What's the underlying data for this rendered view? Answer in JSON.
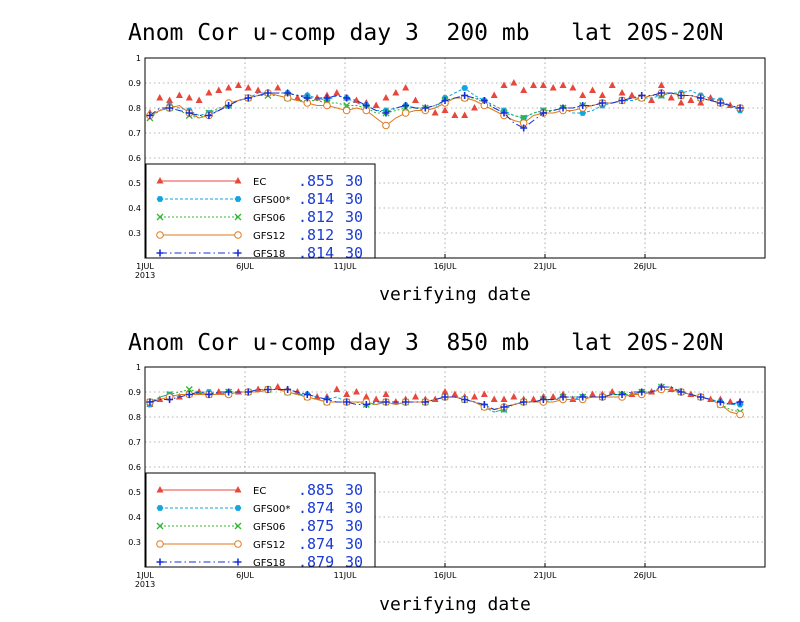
{
  "chart_data": [
    {
      "type": "line",
      "title": "Anom Cor u-comp day 3  200 mb   lat 20S-20N",
      "xlabel": "verifying date",
      "ylabel": "",
      "ylim": [
        0.2,
        1.0
      ],
      "yticks": [
        "1",
        "0.9",
        "0.8",
        "0.7",
        "0.6",
        "0.5",
        "0.4",
        "0.3"
      ],
      "x_tick_labels": [
        "1JUL",
        "6JUL",
        "11JUL",
        "16JUL",
        "21JUL",
        "26JUL"
      ],
      "x_tick_days": [
        1,
        6,
        11,
        16,
        21,
        26
      ],
      "x_year_label": "2013",
      "x_range_days": [
        1,
        32
      ],
      "grid": true,
      "legend_position": "bottom-left",
      "series": [
        {
          "name": "EC",
          "score": ".855",
          "count": "30",
          "color": "#e8473c",
          "marker": "triangle",
          "dash": "",
          "values": [
            0.78,
            0.84,
            0.83,
            0.85,
            0.84,
            0.83,
            0.86,
            0.87,
            0.88,
            0.89,
            0.88,
            0.87,
            0.86,
            0.88,
            0.86,
            0.84,
            0.85,
            0.84,
            0.85,
            0.86,
            0.84,
            0.83,
            0.82,
            0.81,
            0.84,
            0.86,
            0.88,
            0.83,
            0.8,
            0.78,
            0.79,
            0.77,
            0.77,
            0.8,
            0.81,
            0.85,
            0.89,
            0.9,
            0.87,
            0.89,
            0.89,
            0.88,
            0.89,
            0.88,
            0.85,
            0.87,
            0.85,
            0.89,
            0.86,
            0.85,
            0.84,
            0.83,
            0.89,
            0.84,
            0.82,
            0.83,
            0.82,
            0.84,
            0.82,
            0.81,
            0.8
          ]
        },
        {
          "name": "GFS00*",
          "score": ".814",
          "count": "30",
          "color": "#12a5e0",
          "marker": "hexagon",
          "dash": "3 2",
          "values": [
            0.77,
            0.79,
            0.81,
            0.8,
            0.79,
            0.77,
            0.78,
            0.79,
            0.81,
            0.83,
            0.84,
            0.86,
            0.86,
            0.86,
            0.86,
            0.85,
            0.85,
            0.84,
            0.83,
            0.85,
            0.84,
            0.82,
            0.81,
            0.79,
            0.79,
            0.8,
            0.81,
            0.8,
            0.79,
            0.8,
            0.84,
            0.86,
            0.88,
            0.85,
            0.83,
            0.81,
            0.79,
            0.77,
            0.76,
            0.78,
            0.79,
            0.79,
            0.8,
            0.78,
            0.78,
            0.79,
            0.81,
            0.82,
            0.83,
            0.83,
            0.84,
            0.84,
            0.85,
            0.86,
            0.86,
            0.87,
            0.85,
            0.84,
            0.83,
            0.81,
            0.79
          ]
        },
        {
          "name": "GFS06",
          "score": ".812",
          "count": "30",
          "color": "#30b830",
          "marker": "x",
          "dash": "2 2",
          "values": [
            0.76,
            0.79,
            0.8,
            0.79,
            0.77,
            0.76,
            0.78,
            0.8,
            0.81,
            0.83,
            0.84,
            0.85,
            0.85,
            0.85,
            0.84,
            0.83,
            0.83,
            0.83,
            0.82,
            0.82,
            0.81,
            0.81,
            0.8,
            0.78,
            0.78,
            0.79,
            0.8,
            0.8,
            0.8,
            0.81,
            0.83,
            0.84,
            0.84,
            0.84,
            0.82,
            0.8,
            0.78,
            0.77,
            0.76,
            0.78,
            0.79,
            0.79,
            0.8,
            0.8,
            0.81,
            0.81,
            0.82,
            0.82,
            0.83,
            0.84,
            0.84,
            0.85,
            0.85,
            0.86,
            0.85,
            0.85,
            0.84,
            0.83,
            0.82,
            0.81,
            0.8
          ]
        },
        {
          "name": "GFS12",
          "score": ".812",
          "count": "30",
          "color": "#e0781e",
          "marker": "circle",
          "dash": "",
          "values": [
            0.77,
            0.79,
            0.8,
            0.81,
            0.78,
            0.76,
            0.77,
            0.79,
            0.82,
            0.83,
            0.84,
            0.85,
            0.86,
            0.85,
            0.84,
            0.83,
            0.82,
            0.81,
            0.81,
            0.8,
            0.79,
            0.8,
            0.79,
            0.76,
            0.73,
            0.76,
            0.78,
            0.79,
            0.79,
            0.8,
            0.82,
            0.84,
            0.84,
            0.83,
            0.81,
            0.79,
            0.77,
            0.75,
            0.74,
            0.77,
            0.78,
            0.78,
            0.79,
            0.79,
            0.8,
            0.81,
            0.82,
            0.82,
            0.83,
            0.84,
            0.84,
            0.85,
            0.86,
            0.86,
            0.85,
            0.85,
            0.84,
            0.83,
            0.82,
            0.81,
            0.8
          ]
        },
        {
          "name": "GFS18",
          "score": ".814",
          "count": "30",
          "color": "#1530d8",
          "marker": "plus",
          "dash": "7 3 1.5 3",
          "values": [
            0.77,
            0.8,
            0.8,
            0.79,
            0.78,
            0.77,
            0.77,
            0.79,
            0.81,
            0.83,
            0.84,
            0.85,
            0.86,
            0.86,
            0.86,
            0.85,
            0.84,
            0.84,
            0.84,
            0.85,
            0.84,
            0.83,
            0.81,
            0.79,
            0.78,
            0.8,
            0.81,
            0.8,
            0.8,
            0.81,
            0.83,
            0.84,
            0.85,
            0.84,
            0.83,
            0.8,
            0.78,
            0.74,
            0.72,
            0.75,
            0.78,
            0.79,
            0.8,
            0.8,
            0.81,
            0.81,
            0.82,
            0.82,
            0.83,
            0.84,
            0.85,
            0.85,
            0.86,
            0.86,
            0.85,
            0.85,
            0.84,
            0.83,
            0.82,
            0.81,
            0.8
          ]
        }
      ]
    },
    {
      "type": "line",
      "title": "Anom Cor u-comp day 3  850 mb   lat 20S-20N",
      "xlabel": "verifying date",
      "ylabel": "",
      "ylim": [
        0.2,
        1.0
      ],
      "yticks": [
        "1",
        "0.9",
        "0.8",
        "0.7",
        "0.6",
        "0.5",
        "0.4",
        "0.3"
      ],
      "x_tick_labels": [
        "1JUL",
        "6JUL",
        "11JUL",
        "16JUL",
        "21JUL",
        "26JUL"
      ],
      "x_tick_days": [
        1,
        6,
        11,
        16,
        21,
        26
      ],
      "x_year_label": "2013",
      "x_range_days": [
        1,
        32
      ],
      "grid": true,
      "legend_position": "bottom-left",
      "series": [
        {
          "name": "EC",
          "score": ".885",
          "count": "30",
          "color": "#e8473c",
          "marker": "triangle",
          "dash": "",
          "values": [
            0.85,
            0.87,
            0.88,
            0.88,
            0.89,
            0.9,
            0.89,
            0.9,
            0.89,
            0.9,
            0.9,
            0.91,
            0.91,
            0.92,
            0.91,
            0.9,
            0.89,
            0.88,
            0.88,
            0.91,
            0.89,
            0.9,
            0.88,
            0.87,
            0.89,
            0.86,
            0.87,
            0.88,
            0.87,
            0.87,
            0.9,
            0.89,
            0.88,
            0.88,
            0.89,
            0.87,
            0.87,
            0.88,
            0.87,
            0.87,
            0.88,
            0.88,
            0.89,
            0.87,
            0.88,
            0.89,
            0.89,
            0.9,
            0.89,
            0.89,
            0.9,
            0.9,
            0.92,
            0.91,
            0.9,
            0.89,
            0.88,
            0.87,
            0.87,
            0.86,
            0.86
          ]
        },
        {
          "name": "GFS00*",
          "score": ".874",
          "count": "30",
          "color": "#12a5e0",
          "marker": "hexagon",
          "dash": "3 2",
          "values": [
            0.85,
            0.88,
            0.89,
            0.88,
            0.89,
            0.9,
            0.9,
            0.89,
            0.9,
            0.9,
            0.9,
            0.91,
            0.91,
            0.91,
            0.9,
            0.89,
            0.89,
            0.88,
            0.87,
            0.88,
            0.86,
            0.86,
            0.86,
            0.85,
            0.86,
            0.85,
            0.86,
            0.86,
            0.86,
            0.87,
            0.88,
            0.88,
            0.87,
            0.86,
            0.84,
            0.82,
            0.83,
            0.85,
            0.86,
            0.86,
            0.86,
            0.87,
            0.87,
            0.87,
            0.88,
            0.88,
            0.88,
            0.89,
            0.89,
            0.89,
            0.9,
            0.9,
            0.91,
            0.91,
            0.9,
            0.89,
            0.88,
            0.87,
            0.86,
            0.85,
            0.85
          ]
        },
        {
          "name": "GFS06",
          "score": ".875",
          "count": "30",
          "color": "#30b830",
          "marker": "x",
          "dash": "2 2",
          "values": [
            0.86,
            0.88,
            0.89,
            0.9,
            0.91,
            0.9,
            0.89,
            0.89,
            0.9,
            0.9,
            0.9,
            0.9,
            0.91,
            0.91,
            0.9,
            0.89,
            0.88,
            0.87,
            0.86,
            0.86,
            0.86,
            0.86,
            0.85,
            0.85,
            0.86,
            0.85,
            0.86,
            0.86,
            0.86,
            0.87,
            0.88,
            0.88,
            0.87,
            0.86,
            0.84,
            0.82,
            0.83,
            0.85,
            0.86,
            0.86,
            0.87,
            0.87,
            0.88,
            0.88,
            0.88,
            0.88,
            0.88,
            0.89,
            0.89,
            0.89,
            0.9,
            0.9,
            0.92,
            0.92,
            0.9,
            0.89,
            0.88,
            0.87,
            0.85,
            0.83,
            0.82
          ]
        },
        {
          "name": "GFS12",
          "score": ".874",
          "count": "30",
          "color": "#e0781e",
          "marker": "circle",
          "dash": "",
          "values": [
            0.86,
            0.87,
            0.88,
            0.89,
            0.89,
            0.89,
            0.89,
            0.89,
            0.89,
            0.9,
            0.9,
            0.9,
            0.91,
            0.91,
            0.9,
            0.89,
            0.88,
            0.87,
            0.86,
            0.86,
            0.86,
            0.86,
            0.86,
            0.85,
            0.86,
            0.85,
            0.86,
            0.86,
            0.86,
            0.87,
            0.88,
            0.88,
            0.87,
            0.86,
            0.84,
            0.83,
            0.84,
            0.85,
            0.86,
            0.86,
            0.86,
            0.86,
            0.87,
            0.87,
            0.87,
            0.88,
            0.88,
            0.88,
            0.88,
            0.89,
            0.89,
            0.9,
            0.91,
            0.91,
            0.9,
            0.89,
            0.88,
            0.87,
            0.85,
            0.82,
            0.81
          ]
        },
        {
          "name": "GFS18",
          "score": ".879",
          "count": "30",
          "color": "#1530d8",
          "marker": "plus",
          "dash": "7 3 1.5 3",
          "values": [
            0.86,
            0.87,
            0.87,
            0.88,
            0.89,
            0.9,
            0.89,
            0.9,
            0.9,
            0.9,
            0.9,
            0.91,
            0.91,
            0.91,
            0.91,
            0.9,
            0.89,
            0.88,
            0.87,
            0.86,
            0.86,
            0.85,
            0.85,
            0.86,
            0.86,
            0.86,
            0.86,
            0.86,
            0.86,
            0.87,
            0.88,
            0.88,
            0.87,
            0.86,
            0.85,
            0.83,
            0.84,
            0.85,
            0.86,
            0.86,
            0.87,
            0.87,
            0.88,
            0.88,
            0.88,
            0.88,
            0.88,
            0.89,
            0.89,
            0.9,
            0.9,
            0.9,
            0.92,
            0.92,
            0.9,
            0.89,
            0.88,
            0.87,
            0.86,
            0.85,
            0.86
          ]
        }
      ]
    }
  ]
}
